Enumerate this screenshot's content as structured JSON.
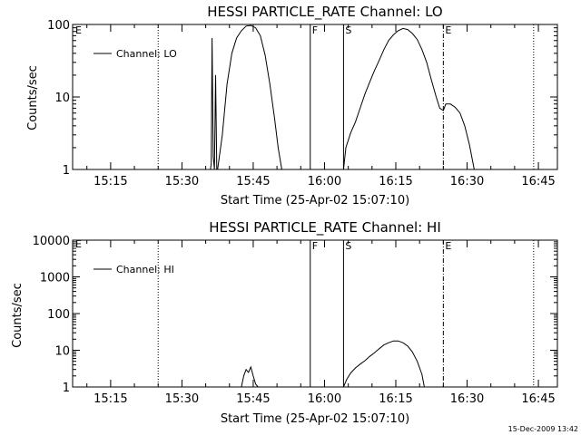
{
  "chart_data": [
    {
      "type": "line",
      "title": "HESSI PARTICLE_RATE Channel: LO",
      "xlabel": "Start Time (25-Apr-02 15:07:10)",
      "ylabel": "Counts/sec",
      "yscale": "log",
      "xlim": [
        "15:07",
        "16:49"
      ],
      "ylim": [
        1,
        100
      ],
      "x_ticks": [
        "15:15",
        "15:30",
        "15:45",
        "16:00",
        "16:15",
        "16:30",
        "16:45"
      ],
      "y_ticks": [
        1,
        10,
        100
      ],
      "y_tick_labels": [
        "1",
        "10",
        "100"
      ],
      "legend": {
        "position": "top-left",
        "entries": [
          "Channel: LO"
        ]
      },
      "series": [
        {
          "name": "Channel: LO",
          "segments": [
            [
              [
                "15:36:00",
                1
              ],
              [
                "15:36:10",
                1.2
              ],
              [
                "15:36:20",
                65
              ],
              [
                "15:36:35",
                1.5
              ],
              [
                "15:36:50",
                1
              ],
              [
                "15:37:05",
                20
              ],
              [
                "15:37:20",
                1
              ]
            ],
            [
              [
                "15:37:30",
                1
              ],
              [
                "15:38:30",
                3
              ],
              [
                "15:39:30",
                15
              ],
              [
                "15:40:30",
                40
              ],
              [
                "15:41:30",
                65
              ],
              [
                "15:42:30",
                82
              ],
              [
                "15:43:30",
                95
              ],
              [
                "15:44:30",
                97
              ],
              [
                "15:45:30",
                90
              ],
              [
                "15:46:30",
                70
              ],
              [
                "15:47:30",
                38
              ],
              [
                "15:48:30",
                15
              ],
              [
                "15:49:30",
                5
              ],
              [
                "15:50:15",
                2
              ],
              [
                "15:51:00",
                1
              ]
            ],
            [
              [
                "16:04:00",
                1
              ],
              [
                "16:04:30",
                2
              ],
              [
                "16:05:30",
                3.2
              ],
              [
                "16:06:30",
                4.5
              ],
              [
                "16:07:30",
                7
              ],
              [
                "16:08:30",
                11
              ],
              [
                "16:09:30",
                16
              ],
              [
                "16:10:30",
                23
              ],
              [
                "16:11:30",
                32
              ],
              [
                "16:12:30",
                45
              ],
              [
                "16:13:30",
                60
              ],
              [
                "16:14:30",
                72
              ],
              [
                "16:15:30",
                82
              ],
              [
                "16:16:30",
                88
              ],
              [
                "16:17:30",
                85
              ],
              [
                "16:18:30",
                75
              ],
              [
                "16:19:30",
                62
              ],
              [
                "16:20:30",
                45
              ],
              [
                "16:21:30",
                30
              ],
              [
                "16:22:30",
                17
              ],
              [
                "16:23:30",
                10
              ],
              [
                "16:24:15",
                7
              ],
              [
                "16:25:00",
                6.5
              ],
              [
                "16:25:30",
                8
              ],
              [
                "16:26:30",
                8
              ],
              [
                "16:27:30",
                7.2
              ],
              [
                "16:28:30",
                6
              ],
              [
                "16:29:30",
                4
              ],
              [
                "16:30:30",
                2.2
              ],
              [
                "16:31:30",
                1
              ]
            ]
          ]
        }
      ],
      "vertical_markers": [
        {
          "time": "15:25",
          "style": "dotted",
          "label": ""
        },
        {
          "time": "15:57",
          "style": "solid",
          "label": "F"
        },
        {
          "time": "16:04",
          "style": "solid",
          "label": "S"
        },
        {
          "time": "16:25",
          "style": "dashdot",
          "label": "E"
        },
        {
          "time": "16:44",
          "style": "dotted",
          "label": ""
        }
      ],
      "left_edge_label": "E"
    },
    {
      "type": "line",
      "title": "HESSI PARTICLE_RATE Channel: HI",
      "xlabel": "Start Time (25-Apr-02 15:07:10)",
      "ylabel": "Counts/sec",
      "yscale": "log",
      "xlim": [
        "15:07",
        "16:49"
      ],
      "ylim": [
        1,
        10000
      ],
      "x_ticks": [
        "15:15",
        "15:30",
        "15:45",
        "16:00",
        "16:15",
        "16:30",
        "16:45"
      ],
      "y_ticks": [
        1,
        10,
        100,
        1000,
        10000
      ],
      "y_tick_labels": [
        "1",
        "10",
        "100",
        "1000",
        "10000"
      ],
      "legend": {
        "position": "top-left",
        "entries": [
          "Channel: HI"
        ]
      },
      "series": [
        {
          "name": "Channel: HI",
          "segments": [
            [
              [
                "15:42:30",
                1
              ],
              [
                "15:43:00",
                2
              ],
              [
                "15:43:30",
                3
              ],
              [
                "15:44:00",
                2.5
              ],
              [
                "15:44:30",
                3.5
              ],
              [
                "15:45:00",
                2
              ],
              [
                "15:45:30",
                1.2
              ],
              [
                "15:46:00",
                1
              ]
            ],
            [
              [
                "16:04:00",
                1
              ],
              [
                "16:04:40",
                1.6
              ],
              [
                "16:05:30",
                2.4
              ],
              [
                "16:06:30",
                3.3
              ],
              [
                "16:07:30",
                4.2
              ],
              [
                "16:08:30",
                5.2
              ],
              [
                "16:09:30",
                6.8
              ],
              [
                "16:10:30",
                8.5
              ],
              [
                "16:11:30",
                11
              ],
              [
                "16:12:30",
                14
              ],
              [
                "16:13:30",
                16
              ],
              [
                "16:14:30",
                18
              ],
              [
                "16:15:30",
                18
              ],
              [
                "16:16:30",
                16
              ],
              [
                "16:17:30",
                13
              ],
              [
                "16:18:30",
                9
              ],
              [
                "16:19:30",
                5
              ],
              [
                "16:20:30",
                2.2
              ],
              [
                "16:21:00",
                1
              ]
            ]
          ]
        }
      ],
      "vertical_markers": [
        {
          "time": "15:25",
          "style": "dotted",
          "label": ""
        },
        {
          "time": "15:57",
          "style": "solid",
          "label": "F"
        },
        {
          "time": "16:04",
          "style": "solid",
          "label": "S"
        },
        {
          "time": "16:25",
          "style": "dashdot",
          "label": "E"
        },
        {
          "time": "16:44",
          "style": "dotted",
          "label": ""
        }
      ],
      "left_edge_label": "E"
    }
  ],
  "footer": {
    "timestamp": "15-Dec-2009 13:42"
  }
}
